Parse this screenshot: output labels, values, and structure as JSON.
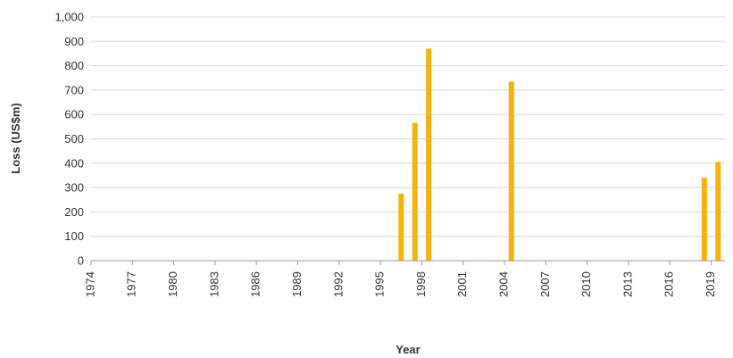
{
  "chart_data": {
    "type": "bar",
    "title": "",
    "xlabel": "Year",
    "ylabel": "Loss (US$m)",
    "xlim": [
      1974,
      2020
    ],
    "ylim": [
      0,
      1000
    ],
    "yticks": [
      0,
      100,
      200,
      300,
      400,
      500,
      600,
      700,
      800,
      900,
      1000
    ],
    "ytick_labels": [
      "0",
      "100",
      "200",
      "300",
      "400",
      "500",
      "600",
      "700",
      "800",
      "900",
      "1,000"
    ],
    "xticks": [
      1974,
      1977,
      1980,
      1983,
      1986,
      1989,
      1992,
      1995,
      1998,
      2001,
      2004,
      2007,
      2010,
      2013,
      2016,
      2019
    ],
    "xtick_labels": [
      "1974",
      "1977",
      "1980",
      "1983",
      "1986",
      "1989",
      "1992",
      "1995",
      "1998",
      "2001",
      "2004",
      "2007",
      "2010",
      "2013",
      "2016",
      "2019"
    ],
    "grid": true,
    "bar_color": "#f5b30f",
    "bars": [
      {
        "x": 1996.5,
        "value": 275
      },
      {
        "x": 1997.5,
        "value": 565
      },
      {
        "x": 1998.5,
        "value": 870
      },
      {
        "x": 2004.5,
        "value": 735
      },
      {
        "x": 2018.5,
        "value": 340
      },
      {
        "x": 2019.5,
        "value": 405
      }
    ]
  }
}
